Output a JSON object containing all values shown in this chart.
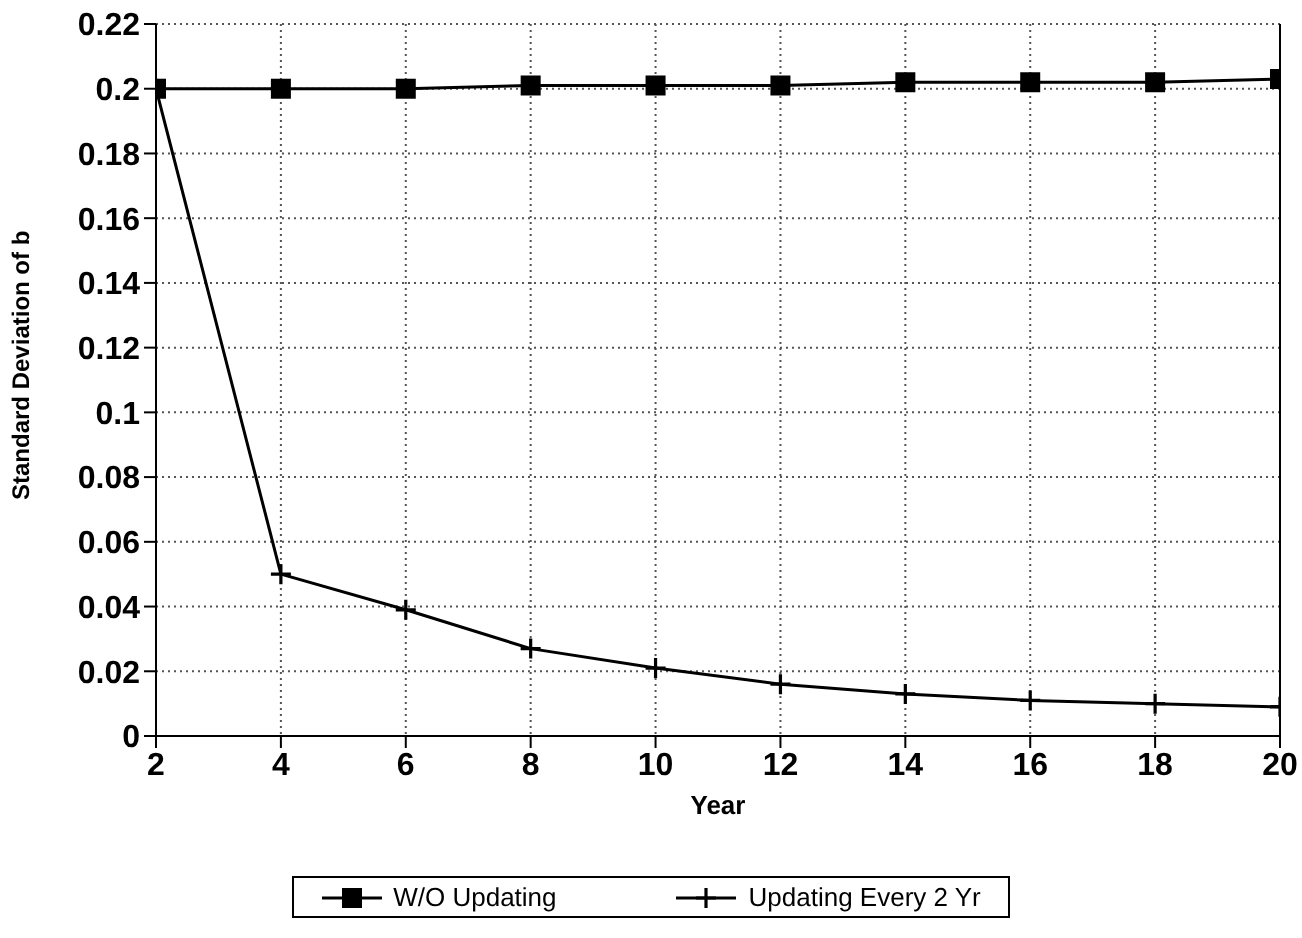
{
  "chart_data": {
    "type": "line",
    "xlabel": "Year",
    "ylabel": "Standard Deviation of b",
    "x": [
      2,
      4,
      6,
      8,
      10,
      12,
      14,
      16,
      18,
      20
    ],
    "series": [
      {
        "name": "W/O Updating",
        "color": "#000000",
        "marker": "square",
        "values": [
          0.2,
          0.2,
          0.2,
          0.201,
          0.201,
          0.201,
          0.202,
          0.202,
          0.202,
          0.203
        ]
      },
      {
        "name": "Updating Every 2 Yr",
        "color": "#000000",
        "marker": "cross",
        "values": [
          0.2,
          0.05,
          0.039,
          0.027,
          0.021,
          0.016,
          0.013,
          0.011,
          0.01,
          0.009
        ]
      }
    ],
    "xlim": [
      2,
      20
    ],
    "xticks": [
      2,
      4,
      6,
      8,
      10,
      12,
      14,
      16,
      18,
      20
    ],
    "ylim": [
      0,
      0.22
    ],
    "yticks": [
      0,
      0.02,
      0.04,
      0.06,
      0.08,
      0.1,
      0.12,
      0.14,
      0.16,
      0.18,
      0.2,
      0.22
    ],
    "grid": true,
    "legend": "bottom",
    "line_style": "solid"
  }
}
